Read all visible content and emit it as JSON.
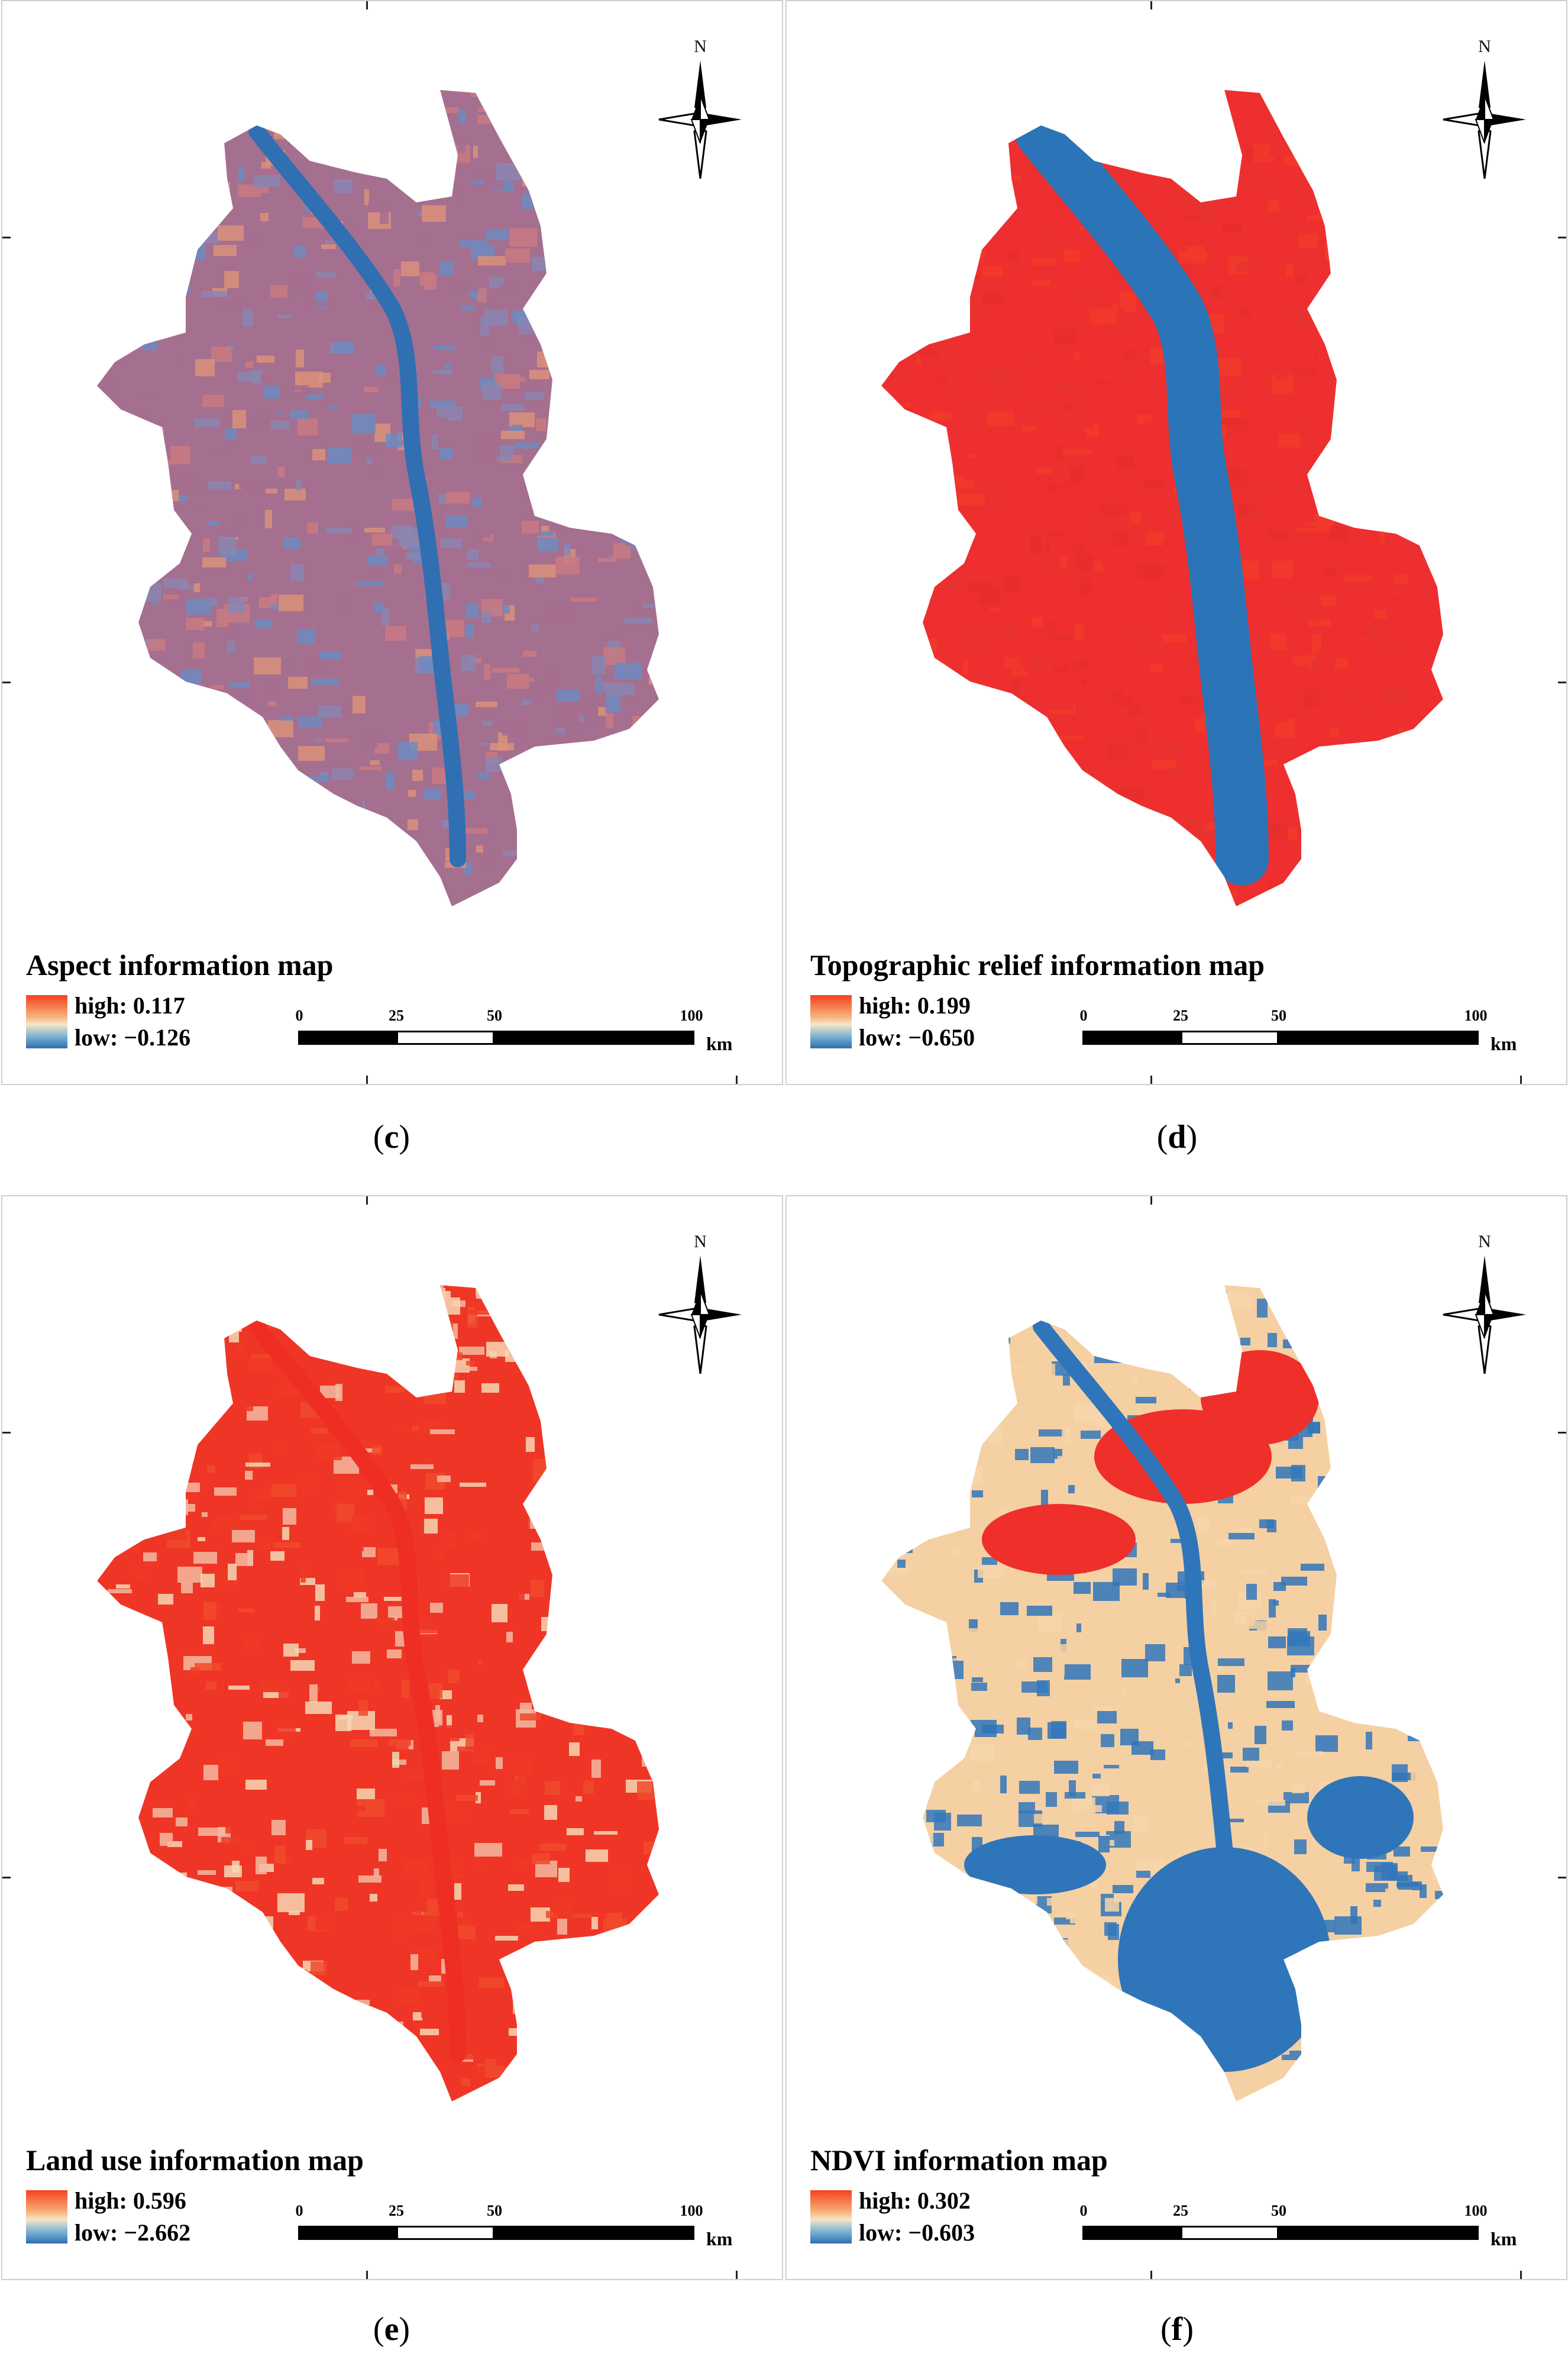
{
  "north_letter": "N",
  "scale": {
    "ticks": [
      "0",
      "25",
      "50",
      "100"
    ],
    "unit": "km"
  },
  "panels": [
    {
      "id": "c",
      "title": "Aspect information map",
      "high": "high: 0.117",
      "low": "low: −0.126",
      "caption_open": "(",
      "caption_letter": "c",
      "caption_close": ")",
      "palette": [
        "#a56f8f",
        "#c97a82",
        "#8a86b2",
        "#d9927a",
        "#6f8bc0"
      ],
      "river_color": "#2f6fb2"
    },
    {
      "id": "d",
      "title": "Topographic relief information map",
      "high": "high: 0.199",
      "low": "low: −0.650",
      "caption_open": "(",
      "caption_letter": "d",
      "caption_close": ")",
      "palette": [
        "#ee2f2f",
        "#e8332f",
        "#f03a2a",
        "#e62e2c"
      ],
      "river_color": "#2b74b7"
    },
    {
      "id": "e",
      "title": "Land use information map",
      "high": "high: 0.596",
      "low": "low: −2.662",
      "caption_open": "(",
      "caption_letter": "e",
      "caption_close": ")",
      "palette": [
        "#ef3526",
        "#f04a2c",
        "#ee3a26",
        "#f3b9a0",
        "#f6d7b4"
      ],
      "river_color": "#ee2e22"
    },
    {
      "id": "f",
      "title": "NDVI information map",
      "high": "high: 0.302",
      "low": "low: −0.603",
      "caption_open": "(",
      "caption_letter": "f",
      "caption_close": ")",
      "palette": [
        "#f5d0a3",
        "#f7d6ab",
        "#2f75ba",
        "#3478bb"
      ],
      "river_color": "#2f75ba"
    }
  ]
}
